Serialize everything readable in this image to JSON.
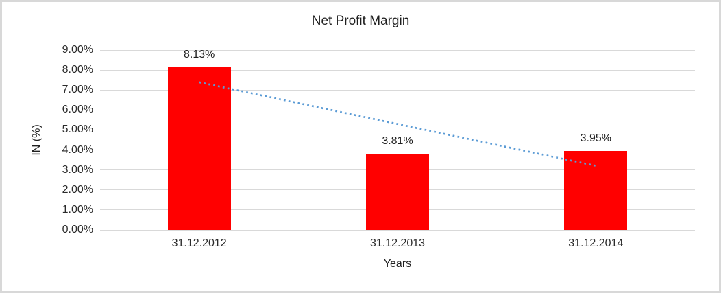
{
  "chart_data": {
    "type": "bar",
    "title": "Net Profit Margin",
    "categories": [
      "31.12.2012",
      "31.12.2013",
      "31.12.2014"
    ],
    "values": [
      8.13,
      3.81,
      3.95
    ],
    "data_labels": [
      "8.13%",
      "3.81%",
      "3.95%"
    ],
    "xlabel": "Years",
    "ylabel": "IN (%)",
    "ylim": [
      0,
      9
    ],
    "ytick_step": 1,
    "ytick_labels": [
      "0.00%",
      "1.00%",
      "2.00%",
      "3.00%",
      "4.00%",
      "5.00%",
      "6.00%",
      "7.00%",
      "8.00%",
      "9.00%"
    ],
    "grid": true,
    "legend": "none",
    "trendline": {
      "type": "linear",
      "style": "dotted",
      "start_value": 7.39,
      "end_value": 3.21
    },
    "colors": {
      "bar": "#FF0000",
      "trendline": "#5B9BD5",
      "gridline": "#D9D9D9",
      "axis_line": "#D9D9D9",
      "border": "#D8D8D8",
      "background": "#FFFFFF"
    }
  }
}
